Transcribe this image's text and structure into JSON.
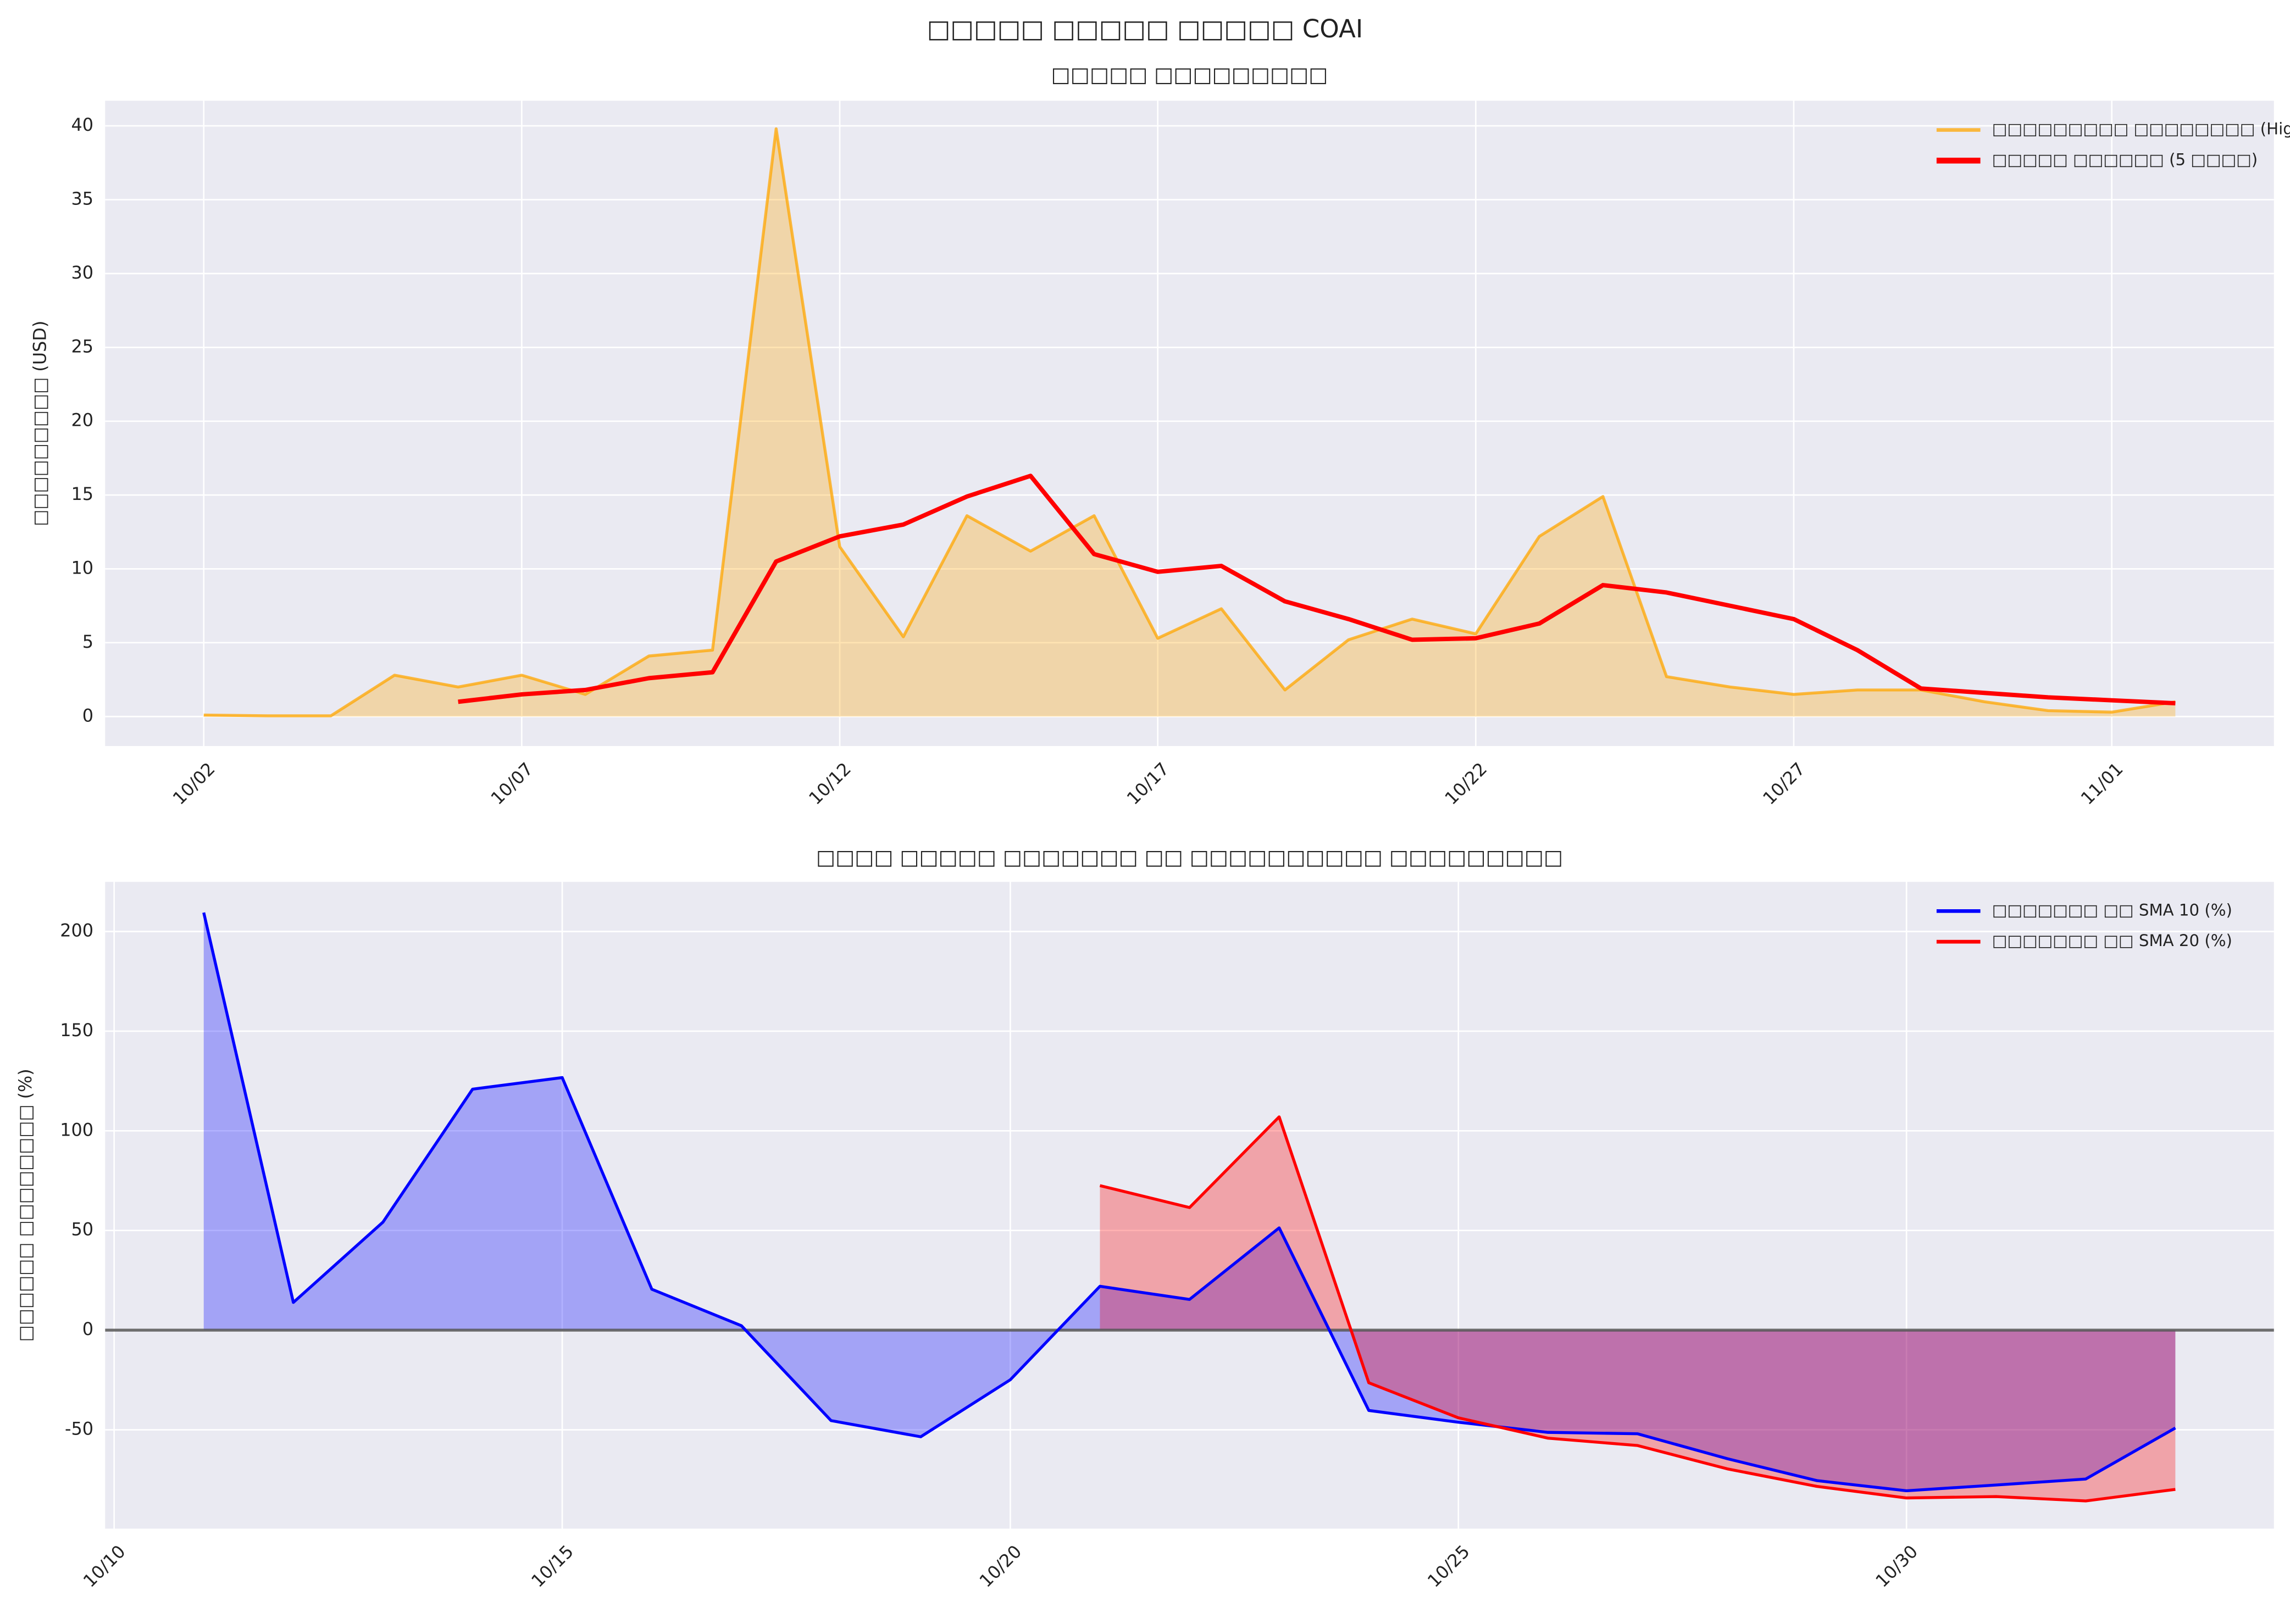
{
  "title": "□□□□□ □□□□□ □□□□□ COAI",
  "chart_data": [
    {
      "type": "line",
      "title": "□□□□□ □□□□□□□□□",
      "ylabel": "□□□□□□□□□ (USD)",
      "x": [
        "10/02",
        "10/03",
        "10/04",
        "10/05",
        "10/06",
        "10/07",
        "10/08",
        "10/09",
        "10/10",
        "10/11",
        "10/12",
        "10/13",
        "10/14",
        "10/15",
        "10/16",
        "10/17",
        "10/18",
        "10/19",
        "10/20",
        "10/21",
        "10/22",
        "10/23",
        "10/24",
        "10/25",
        "10/26",
        "10/27",
        "10/28",
        "10/29",
        "10/30",
        "10/31",
        "11/01",
        "11/02"
      ],
      "series": [
        {
          "name": "□□□□□□□□□ □□□□□□□□ (High-Low)",
          "color": "#FFA500",
          "line_width": 2,
          "fill": true,
          "values": [
            0.1,
            0.05,
            0.05,
            2.8,
            2.0,
            2.8,
            1.5,
            4.1,
            4.5,
            39.8,
            11.5,
            5.4,
            13.6,
            11.2,
            13.6,
            5.3,
            7.3,
            1.8,
            5.2,
            6.6,
            5.6,
            12.2,
            14.9,
            2.7,
            2.0,
            1.5,
            1.8,
            1.8,
            1.0,
            0.4,
            0.3,
            1.0
          ]
        },
        {
          "name": "□□□□□ □□□□□□ (5 □□□□)",
          "color": "#FF0000",
          "line_width": 3,
          "fill": false,
          "values": [
            null,
            null,
            null,
            null,
            1.0,
            1.5,
            1.8,
            2.6,
            3.0,
            10.5,
            12.2,
            13.0,
            14.9,
            16.3,
            11.0,
            9.8,
            10.2,
            7.8,
            6.6,
            5.2,
            5.3,
            6.3,
            8.9,
            8.4,
            7.5,
            6.6,
            4.5,
            1.9,
            1.6,
            1.3,
            1.1,
            0.9
          ]
        }
      ],
      "xticks": [
        "10/02",
        "10/07",
        "10/12",
        "10/17",
        "10/22",
        "10/27",
        "11/01"
      ],
      "ylim": [
        -2,
        41.7
      ],
      "yticks": [
        0,
        5,
        10,
        15,
        20,
        25,
        30,
        35,
        40
      ],
      "grid": true,
      "legend": "upper right"
    },
    {
      "type": "line",
      "title": "□□□□ □□□□□ □□□□□□□ □□ □□□□□□□□□□ □□□□□□□□□",
      "ylabel": "□□□□□□ □□□□□□□□ (%)",
      "x": [
        "10/11",
        "10/12",
        "10/13",
        "10/14",
        "10/15",
        "10/16",
        "10/17",
        "10/18",
        "10/19",
        "10/20",
        "10/21",
        "10/22",
        "10/23",
        "10/24",
        "10/25",
        "10/26",
        "10/27",
        "10/28",
        "10/29",
        "10/30",
        "10/31",
        "11/01",
        "11/02"
      ],
      "series": [
        {
          "name": "□□□□□□□ □□ SMA 10 (%)",
          "color": "#0000FF",
          "line_width": 2,
          "fill": true,
          "values": [
            209.5,
            13.9,
            54.2,
            120.9,
            126.7,
            20.5,
            2.2,
            -45.4,
            -53.5,
            -24.9,
            22.0,
            15.4,
            51.3,
            -40.3,
            -46.2,
            -51.3,
            -52.0,
            -64.5,
            -75.5,
            -80.6,
            -77.7,
            -74.7,
            -49.1
          ]
        },
        {
          "name": "□□□□□□□ □□ SMA 20 (%)",
          "color": "#FF0000",
          "line_width": 2,
          "fill": true,
          "values": [
            null,
            null,
            null,
            null,
            null,
            null,
            null,
            null,
            null,
            null,
            72.5,
            61.5,
            107,
            -26.4,
            -44,
            -54.2,
            -57.9,
            -69.6,
            -78.4,
            -84.2,
            -83.5,
            -85.7,
            -79.9
          ]
        }
      ],
      "xticks": [
        "10/10",
        "10/15",
        "10/20",
        "10/25",
        "10/30"
      ],
      "ylim": [
        -99.6,
        224.9
      ],
      "yticks": [
        -50,
        0,
        50,
        100,
        150,
        200
      ],
      "grid": true,
      "legend": "upper right",
      "zero_line": true
    }
  ]
}
